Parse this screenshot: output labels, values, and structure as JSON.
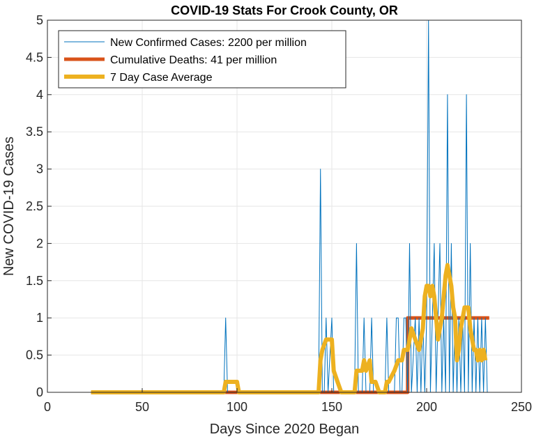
{
  "chart_data": {
    "type": "line",
    "title": "COVID-19 Stats For Crook County, OR",
    "xlabel": "Days Since 2020 Began",
    "ylabel": "New COVID-19 Cases",
    "xlim": [
      0,
      250
    ],
    "ylim": [
      0,
      5
    ],
    "xticks": [
      0,
      50,
      100,
      150,
      200,
      250
    ],
    "yticks": [
      0,
      0.5,
      1,
      1.5,
      2,
      2.5,
      3,
      3.5,
      4,
      4.5,
      5
    ],
    "xtick_labels": [
      "0",
      "50",
      "100",
      "150",
      "200",
      "250"
    ],
    "ytick_labels": [
      "0",
      "0.5",
      "1",
      "1.5",
      "2",
      "2.5",
      "3",
      "3.5",
      "4",
      "4.5",
      "5"
    ],
    "grid": true,
    "legend_position": "top-left",
    "series": [
      {
        "name": "New Confirmed Cases: 2200 per million",
        "color": "#0072BD",
        "points": [
          [
            23,
            0
          ],
          [
            93,
            0
          ],
          [
            94,
            1
          ],
          [
            95,
            0
          ],
          [
            143,
            0
          ],
          [
            144,
            3
          ],
          [
            145,
            0
          ],
          [
            146,
            0
          ],
          [
            147,
            1
          ],
          [
            148,
            0
          ],
          [
            150,
            1
          ],
          [
            151,
            0
          ],
          [
            162,
            0
          ],
          [
            163,
            2
          ],
          [
            164,
            0
          ],
          [
            166,
            0
          ],
          [
            167,
            1
          ],
          [
            168,
            0
          ],
          [
            170,
            0
          ],
          [
            171,
            1
          ],
          [
            172,
            0
          ],
          [
            178,
            0
          ],
          [
            179,
            1
          ],
          [
            180,
            0
          ],
          [
            183,
            0
          ],
          [
            184,
            1
          ],
          [
            185,
            1
          ],
          [
            186,
            0
          ],
          [
            187,
            0
          ],
          [
            188,
            1
          ],
          [
            189,
            1
          ],
          [
            190,
            0
          ],
          [
            191,
            2
          ],
          [
            192,
            0
          ],
          [
            194,
            1
          ],
          [
            195,
            0
          ],
          [
            196,
            1
          ],
          [
            197,
            0
          ],
          [
            198,
            1
          ],
          [
            199,
            0
          ],
          [
            200,
            1
          ],
          [
            201,
            5
          ],
          [
            202,
            0
          ],
          [
            203,
            1
          ],
          [
            204,
            2
          ],
          [
            205,
            0
          ],
          [
            206,
            1
          ],
          [
            207,
            2
          ],
          [
            208,
            0
          ],
          [
            209,
            1
          ],
          [
            210,
            0
          ],
          [
            211,
            4
          ],
          [
            212,
            0
          ],
          [
            213,
            2
          ],
          [
            214,
            0
          ],
          [
            215,
            1
          ],
          [
            216,
            0
          ],
          [
            217,
            1
          ],
          [
            218,
            0
          ],
          [
            219,
            1
          ],
          [
            220,
            0
          ],
          [
            221,
            4
          ],
          [
            222,
            0
          ],
          [
            223,
            2
          ],
          [
            224,
            0
          ],
          [
            225,
            1
          ],
          [
            226,
            0
          ],
          [
            227,
            1
          ],
          [
            228,
            0
          ],
          [
            229,
            1
          ],
          [
            230,
            0
          ],
          [
            231,
            1
          ],
          [
            232,
            0
          ]
        ]
      },
      {
        "name": "Cumulative Deaths: 41 per million",
        "color": "#D95319",
        "points": [
          [
            23,
            0
          ],
          [
            190,
            0
          ],
          [
            190,
            1
          ],
          [
            233,
            1
          ]
        ]
      },
      {
        "name": "7 Day Case Average",
        "color": "#EDB120",
        "points": [
          [
            23,
            0
          ],
          [
            93,
            0
          ],
          [
            94,
            0.14
          ],
          [
            100,
            0.14
          ],
          [
            101,
            0
          ],
          [
            143,
            0
          ],
          [
            144,
            0.43
          ],
          [
            145,
            0.57
          ],
          [
            147,
            0.71
          ],
          [
            150,
            0.71
          ],
          [
            151,
            0.29
          ],
          [
            153,
            0.14
          ],
          [
            155,
            0
          ],
          [
            162,
            0
          ],
          [
            163,
            0.29
          ],
          [
            166,
            0.29
          ],
          [
            167,
            0.43
          ],
          [
            168,
            0.29
          ],
          [
            170,
            0.43
          ],
          [
            171,
            0.14
          ],
          [
            173,
            0.14
          ],
          [
            175,
            0
          ],
          [
            178,
            0
          ],
          [
            179,
            0.14
          ],
          [
            180,
            0.14
          ],
          [
            183,
            0.29
          ],
          [
            185,
            0.43
          ],
          [
            187,
            0.43
          ],
          [
            188,
            0.57
          ],
          [
            190,
            0.57
          ],
          [
            191,
            0.71
          ],
          [
            192,
            0.86
          ],
          [
            194,
            0.71
          ],
          [
            196,
            0.57
          ],
          [
            198,
            0.86
          ],
          [
            199,
            1.29
          ],
          [
            200,
            1.43
          ],
          [
            201,
            1.43
          ],
          [
            202,
            1.29
          ],
          [
            203,
            1.43
          ],
          [
            204,
            1.29
          ],
          [
            205,
            1.0
          ],
          [
            206,
            0.71
          ],
          [
            207,
            0.86
          ],
          [
            208,
            1.0
          ],
          [
            209,
            1.29
          ],
          [
            210,
            1.57
          ],
          [
            211,
            1.71
          ],
          [
            212,
            1.57
          ],
          [
            213,
            1.43
          ],
          [
            214,
            1.14
          ],
          [
            215,
            1.0
          ],
          [
            216,
            0.43
          ],
          [
            217,
            0.57
          ],
          [
            218,
            0.86
          ],
          [
            219,
            1.0
          ],
          [
            220,
            1.14
          ],
          [
            221,
            1.14
          ],
          [
            222,
            1.14
          ],
          [
            223,
            0.86
          ],
          [
            224,
            0.71
          ],
          [
            225,
            0.57
          ],
          [
            226,
            0.57
          ],
          [
            227,
            0.43
          ],
          [
            228,
            0.57
          ],
          [
            229,
            0.43
          ],
          [
            230,
            0.57
          ],
          [
            231,
            0.43
          ]
        ]
      }
    ]
  }
}
